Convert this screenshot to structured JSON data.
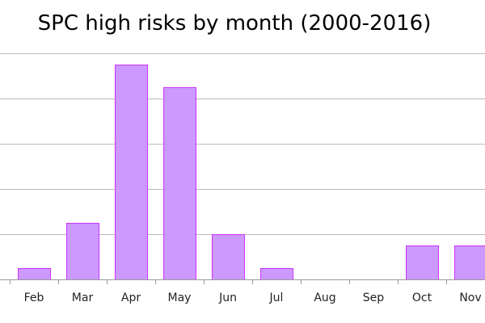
{
  "chart_data": {
    "type": "bar",
    "title": "SPC high risks by month (2000-2016)",
    "categories": [
      "Feb",
      "Mar",
      "Apr",
      "May",
      "Jun",
      "Jul",
      "Aug",
      "Sep",
      "Oct",
      "Nov"
    ],
    "values": [
      1,
      5,
      19,
      17,
      4,
      1,
      0,
      0,
      3,
      3
    ],
    "ylim": [
      0,
      20
    ],
    "y_gridline_step": 4,
    "grid": true,
    "xlabel": "",
    "ylabel": "",
    "colors": {
      "bar_fill": "#cc99ff",
      "bar_stroke": "#cc33ff",
      "gridline": "#bbbbbb",
      "axis": "#999999"
    }
  }
}
